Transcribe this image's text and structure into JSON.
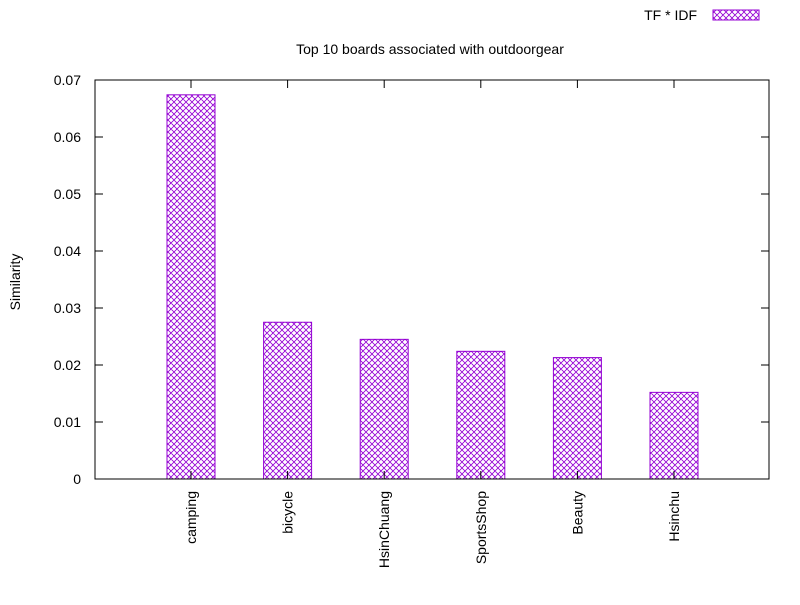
{
  "chart_data": {
    "type": "bar",
    "title": "Top 10 boards associated with outdoorgear",
    "xlabel": "",
    "ylabel": "Similarity",
    "categories": [
      "camping",
      "bicycle",
      "HsinChuang",
      "SportsShop",
      "Beauty",
      "Hsinchu"
    ],
    "series": [
      {
        "name": "TF * IDF",
        "values": [
          0.0674,
          0.0275,
          0.0245,
          0.0224,
          0.0213,
          0.0152
        ],
        "color": "#9400d3",
        "pattern": "crosshatch"
      }
    ],
    "ylim": [
      0,
      0.07
    ],
    "yticks": [
      "0",
      "0.01",
      "0.02",
      "0.03",
      "0.04",
      "0.05",
      "0.06",
      "0.07"
    ],
    "grid": false,
    "legend": "top-right"
  }
}
